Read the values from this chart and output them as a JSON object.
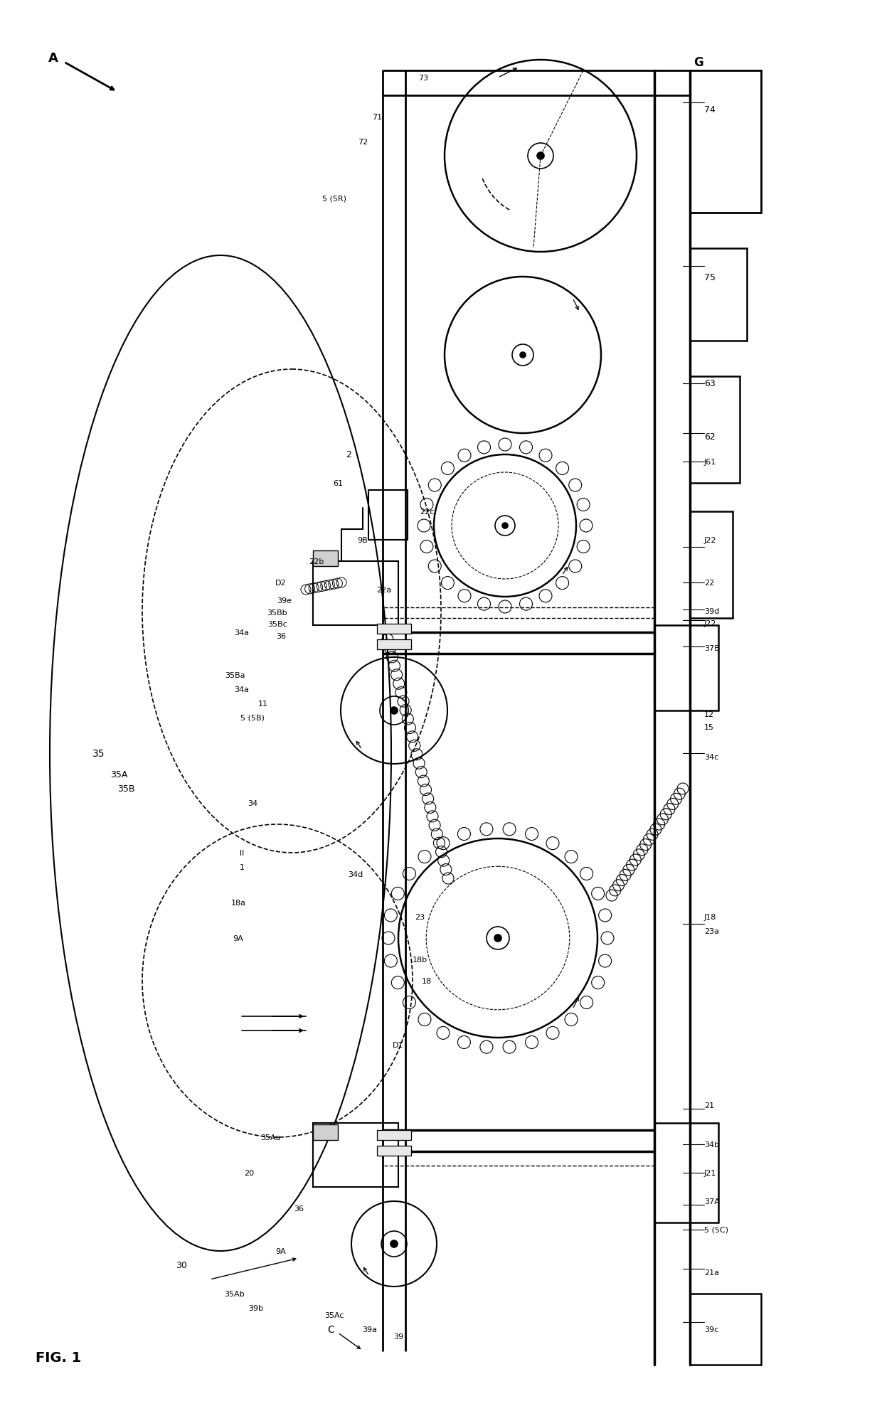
{
  "bg_color": "#ffffff",
  "fig_width": 12.4,
  "fig_height": 19.78,
  "dpi": 100
}
